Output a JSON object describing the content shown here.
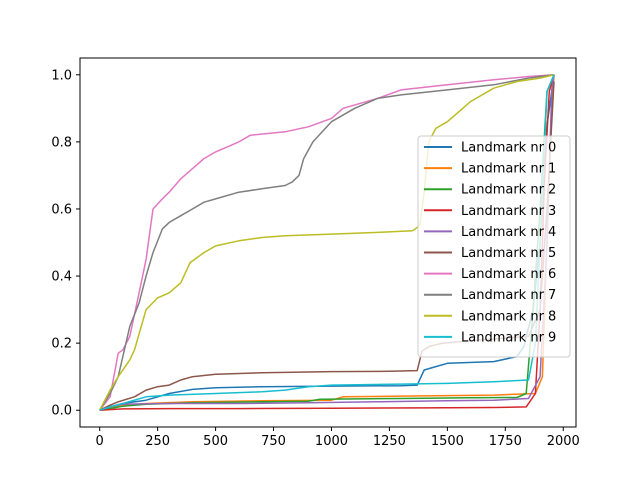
{
  "chart_data": {
    "type": "line",
    "title": "",
    "xlabel": "",
    "ylabel": "",
    "xlim": [
      -85,
      2055
    ],
    "ylim": [
      -0.05,
      1.05
    ],
    "xticks": [
      0,
      250,
      500,
      750,
      1000,
      1250,
      1500,
      1750,
      2000
    ],
    "yticks": [
      0.0,
      0.2,
      0.4,
      0.6,
      0.8,
      1.0
    ],
    "xtick_labels": [
      "0",
      "250",
      "500",
      "750",
      "1000",
      "1250",
      "1500",
      "1750",
      "2000"
    ],
    "ytick_labels": [
      "0.0",
      "0.2",
      "0.4",
      "0.6",
      "0.8",
      "1.0"
    ],
    "grid": false,
    "legend_position": "center-right",
    "series": [
      {
        "name": "Landmark nr 0",
        "color": "#1f77b4",
        "points": [
          [
            0,
            0
          ],
          [
            45,
            0.01
          ],
          [
            100,
            0.02
          ],
          [
            200,
            0.03
          ],
          [
            300,
            0.05
          ],
          [
            400,
            0.062
          ],
          [
            500,
            0.067
          ],
          [
            700,
            0.07
          ],
          [
            1000,
            0.072
          ],
          [
            1300,
            0.073
          ],
          [
            1370,
            0.075
          ],
          [
            1400,
            0.12
          ],
          [
            1450,
            0.13
          ],
          [
            1500,
            0.14
          ],
          [
            1700,
            0.145
          ],
          [
            1800,
            0.16
          ],
          [
            1830,
            0.19
          ],
          [
            1870,
            0.3
          ],
          [
            1900,
            0.5
          ],
          [
            1930,
            0.85
          ],
          [
            1960,
            1.0
          ]
        ]
      },
      {
        "name": "Landmark nr 1",
        "color": "#ff7f0e",
        "points": [
          [
            0,
            0
          ],
          [
            45,
            0.008
          ],
          [
            100,
            0.015
          ],
          [
            200,
            0.02
          ],
          [
            400,
            0.025
          ],
          [
            700,
            0.028
          ],
          [
            1000,
            0.03
          ],
          [
            1050,
            0.04
          ],
          [
            1300,
            0.042
          ],
          [
            1700,
            0.045
          ],
          [
            1880,
            0.05
          ],
          [
            1910,
            0.1
          ],
          [
            1930,
            0.5
          ],
          [
            1950,
            0.9
          ],
          [
            1960,
            1.0
          ]
        ]
      },
      {
        "name": "Landmark nr 2",
        "color": "#2ca02c",
        "points": [
          [
            0,
            0
          ],
          [
            45,
            0.005
          ],
          [
            100,
            0.012
          ],
          [
            200,
            0.018
          ],
          [
            400,
            0.022
          ],
          [
            700,
            0.025
          ],
          [
            900,
            0.027
          ],
          [
            950,
            0.033
          ],
          [
            1300,
            0.035
          ],
          [
            1600,
            0.037
          ],
          [
            1800,
            0.038
          ],
          [
            1840,
            0.05
          ],
          [
            1870,
            0.3
          ],
          [
            1900,
            0.6
          ],
          [
            1930,
            0.95
          ],
          [
            1960,
            1.0
          ]
        ]
      },
      {
        "name": "Landmark nr 3",
        "color": "#d62728",
        "points": [
          [
            0,
            0
          ],
          [
            45,
            0.002
          ],
          [
            100,
            0.004
          ],
          [
            300,
            0.005
          ],
          [
            600,
            0.005
          ],
          [
            1000,
            0.006
          ],
          [
            1400,
            0.007
          ],
          [
            1700,
            0.008
          ],
          [
            1840,
            0.01
          ],
          [
            1880,
            0.05
          ],
          [
            1900,
            0.3
          ],
          [
            1920,
            0.7
          ],
          [
            1940,
            0.95
          ],
          [
            1960,
            1.0
          ]
        ]
      },
      {
        "name": "Landmark nr 4",
        "color": "#9467bd",
        "points": [
          [
            0,
            0
          ],
          [
            45,
            0.01
          ],
          [
            100,
            0.018
          ],
          [
            300,
            0.02
          ],
          [
            600,
            0.02
          ],
          [
            900,
            0.022
          ],
          [
            1200,
            0.025
          ],
          [
            1500,
            0.028
          ],
          [
            1700,
            0.03
          ],
          [
            1850,
            0.035
          ],
          [
            1900,
            0.1
          ],
          [
            1930,
            0.5
          ],
          [
            1950,
            0.95
          ],
          [
            1960,
            1.0
          ]
        ]
      },
      {
        "name": "Landmark nr 5",
        "color": "#8c564b",
        "points": [
          [
            0,
            0
          ],
          [
            45,
            0.015
          ],
          [
            80,
            0.025
          ],
          [
            150,
            0.04
          ],
          [
            200,
            0.06
          ],
          [
            250,
            0.07
          ],
          [
            300,
            0.075
          ],
          [
            350,
            0.09
          ],
          [
            400,
            0.1
          ],
          [
            500,
            0.107
          ],
          [
            700,
            0.112
          ],
          [
            1000,
            0.115
          ],
          [
            1250,
            0.116
          ],
          [
            1370,
            0.118
          ],
          [
            1390,
            0.175
          ],
          [
            1420,
            0.19
          ],
          [
            1480,
            0.2
          ],
          [
            1650,
            0.21
          ],
          [
            1850,
            0.22
          ],
          [
            1900,
            0.3
          ],
          [
            1930,
            0.6
          ],
          [
            1960,
            0.98
          ]
        ]
      },
      {
        "name": "Landmark nr 6",
        "color": "#e377c2",
        "points": [
          [
            0,
            0
          ],
          [
            45,
            0.04
          ],
          [
            80,
            0.17
          ],
          [
            100,
            0.18
          ],
          [
            130,
            0.22
          ],
          [
            170,
            0.35
          ],
          [
            200,
            0.45
          ],
          [
            230,
            0.6
          ],
          [
            270,
            0.63
          ],
          [
            300,
            0.65
          ],
          [
            350,
            0.69
          ],
          [
            400,
            0.72
          ],
          [
            450,
            0.75
          ],
          [
            500,
            0.77
          ],
          [
            600,
            0.8
          ],
          [
            650,
            0.82
          ],
          [
            800,
            0.83
          ],
          [
            900,
            0.845
          ],
          [
            1000,
            0.87
          ],
          [
            1050,
            0.9
          ],
          [
            1200,
            0.93
          ],
          [
            1300,
            0.955
          ],
          [
            1500,
            0.97
          ],
          [
            1700,
            0.985
          ],
          [
            1850,
            0.995
          ],
          [
            1960,
            1.0
          ]
        ]
      },
      {
        "name": "Landmark nr 7",
        "color": "#7f7f7f",
        "points": [
          [
            0,
            0
          ],
          [
            45,
            0.05
          ],
          [
            80,
            0.1
          ],
          [
            130,
            0.25
          ],
          [
            170,
            0.32
          ],
          [
            200,
            0.4
          ],
          [
            230,
            0.47
          ],
          [
            270,
            0.54
          ],
          [
            300,
            0.56
          ],
          [
            350,
            0.58
          ],
          [
            400,
            0.6
          ],
          [
            450,
            0.62
          ],
          [
            500,
            0.63
          ],
          [
            600,
            0.65
          ],
          [
            700,
            0.66
          ],
          [
            800,
            0.67
          ],
          [
            830,
            0.68
          ],
          [
            860,
            0.7
          ],
          [
            880,
            0.75
          ],
          [
            920,
            0.8
          ],
          [
            1000,
            0.86
          ],
          [
            1100,
            0.9
          ],
          [
            1200,
            0.93
          ],
          [
            1300,
            0.94
          ],
          [
            1500,
            0.955
          ],
          [
            1700,
            0.97
          ],
          [
            1850,
            0.99
          ],
          [
            1960,
            1.0
          ]
        ]
      },
      {
        "name": "Landmark nr 8",
        "color": "#bcbd22",
        "points": [
          [
            0,
            0
          ],
          [
            45,
            0.06
          ],
          [
            80,
            0.1
          ],
          [
            130,
            0.15
          ],
          [
            150,
            0.18
          ],
          [
            200,
            0.3
          ],
          [
            250,
            0.335
          ],
          [
            300,
            0.35
          ],
          [
            350,
            0.38
          ],
          [
            390,
            0.44
          ],
          [
            450,
            0.47
          ],
          [
            500,
            0.49
          ],
          [
            600,
            0.505
          ],
          [
            700,
            0.515
          ],
          [
            800,
            0.52
          ],
          [
            1000,
            0.525
          ],
          [
            1200,
            0.53
          ],
          [
            1350,
            0.535
          ],
          [
            1380,
            0.55
          ],
          [
            1400,
            0.65
          ],
          [
            1420,
            0.8
          ],
          [
            1450,
            0.84
          ],
          [
            1500,
            0.86
          ],
          [
            1600,
            0.92
          ],
          [
            1700,
            0.96
          ],
          [
            1800,
            0.98
          ],
          [
            1900,
            0.99
          ],
          [
            1960,
            1.0
          ]
        ]
      },
      {
        "name": "Landmark nr 9",
        "color": "#17becf",
        "points": [
          [
            0,
            0
          ],
          [
            45,
            0.01
          ],
          [
            100,
            0.02
          ],
          [
            200,
            0.04
          ],
          [
            300,
            0.045
          ],
          [
            500,
            0.05
          ],
          [
            700,
            0.055
          ],
          [
            800,
            0.06
          ],
          [
            900,
            0.07
          ],
          [
            1000,
            0.075
          ],
          [
            1300,
            0.078
          ],
          [
            1500,
            0.08
          ],
          [
            1700,
            0.085
          ],
          [
            1850,
            0.09
          ],
          [
            1880,
            0.2
          ],
          [
            1900,
            0.5
          ],
          [
            1930,
            0.95
          ],
          [
            1960,
            1.0
          ]
        ]
      }
    ]
  }
}
